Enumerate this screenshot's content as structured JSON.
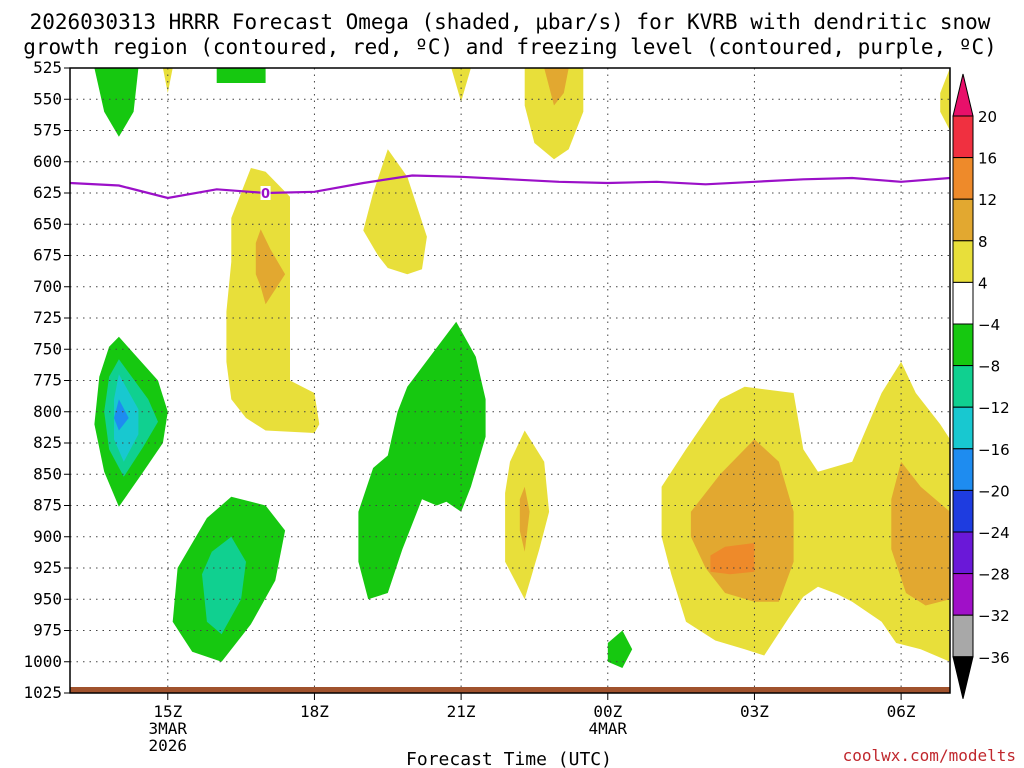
{
  "chart_data": {
    "type": "filled-contour",
    "title_lines": [
      "2026030313 HRRR Forecast Omega (shaded, μbar/s) for KVRB with dendritic snow",
      "growth region (contoured, red, ºC) and freezing level (contoured, purple, ºC)"
    ],
    "xlabel": "Forecast Time (UTC)",
    "credit": "coolwx.com/modelts",
    "x_range_hours": [
      13,
      31
    ],
    "y_range_hpa": [
      525,
      1025
    ],
    "y_ticks": [
      "525",
      "550",
      "575",
      "600",
      "625",
      "650",
      "675",
      "700",
      "725",
      "750",
      "775",
      "800",
      "825",
      "850",
      "875",
      "900",
      "925",
      "950",
      "975",
      "1000",
      "1025"
    ],
    "x_ticks": [
      {
        "hour": 15,
        "lines": [
          "15Z",
          "3MAR",
          "2026"
        ]
      },
      {
        "hour": 18,
        "lines": [
          "18Z"
        ]
      },
      {
        "hour": 21,
        "lines": [
          "21Z"
        ]
      },
      {
        "hour": 24,
        "lines": [
          "00Z",
          "4MAR"
        ]
      },
      {
        "hour": 27,
        "lines": [
          "03Z"
        ]
      },
      {
        "hour": 30,
        "lines": [
          "06Z"
        ]
      }
    ],
    "colorbar": {
      "levels": [
        "20",
        "16",
        "12",
        "8",
        "4",
        "−4",
        "−8",
        "−12",
        "−16",
        "−20",
        "−24",
        "−28",
        "−32",
        "−36"
      ],
      "bins": [
        {
          "range": "16 to 20",
          "color": "#f03040"
        },
        {
          "range": "12 to 16",
          "color": "#ee8a2a"
        },
        {
          "range": "8 to 12",
          "color": "#e2a830"
        },
        {
          "range": "4 to 8",
          "color": "#e8df3a"
        },
        {
          "range": "-4 to 4",
          "color": "#ffffff"
        },
        {
          "range": "-8 to -4",
          "color": "#16c810"
        },
        {
          "range": "-12 to -8",
          "color": "#10d090"
        },
        {
          "range": "-16 to -12",
          "color": "#18c8d0"
        },
        {
          "range": "-20 to -16",
          "color": "#1e8cf0"
        },
        {
          "range": "-24 to -20",
          "color": "#1e3ce0"
        },
        {
          "range": "-28 to -24",
          "color": "#6a18d8"
        },
        {
          "range": "-32 to -28",
          "color": "#a010c8"
        },
        {
          "range": "-36 to -32",
          "color": "#a8a8a8"
        }
      ],
      "top_arrow_color": "#e8106a",
      "bottom_arrow_color": "#000000"
    },
    "freezing_level": {
      "label": "0",
      "color": "#9b10c8",
      "points": [
        [
          13,
          617
        ],
        [
          14,
          619
        ],
        [
          15,
          629
        ],
        [
          16,
          622
        ],
        [
          17,
          625
        ],
        [
          18,
          624
        ],
        [
          19,
          617
        ],
        [
          20,
          611
        ],
        [
          21,
          612
        ],
        [
          22,
          614
        ],
        [
          23,
          616
        ],
        [
          24,
          617
        ],
        [
          25,
          616
        ],
        [
          26,
          618
        ],
        [
          27,
          616
        ],
        [
          28,
          614
        ],
        [
          29,
          613
        ],
        [
          30,
          616
        ],
        [
          31,
          613
        ]
      ]
    },
    "omega_regions": [
      {
        "name": "top-left-descent",
        "level": -4,
        "points": [
          [
            13.5,
            525
          ],
          [
            14.4,
            525
          ],
          [
            14.3,
            560
          ],
          [
            14.0,
            580
          ],
          [
            13.7,
            560
          ]
        ]
      },
      {
        "name": "top-left-descent",
        "level": -4,
        "points": [
          [
            16.0,
            525
          ],
          [
            17.0,
            525
          ],
          [
            17.0,
            537
          ],
          [
            16.0,
            537
          ]
        ]
      },
      {
        "name": "top-left-ascent",
        "level": 4,
        "points": [
          [
            14.9,
            525
          ],
          [
            15.1,
            525
          ],
          [
            15.0,
            545
          ]
        ]
      },
      {
        "name": "top-mid-ascent",
        "level": 4,
        "points": [
          [
            20.8,
            525
          ],
          [
            21.2,
            525
          ],
          [
            21.0,
            552
          ]
        ]
      },
      {
        "name": "top-mid-ascent",
        "level": 4,
        "points": [
          [
            22.3,
            525
          ],
          [
            23.5,
            525
          ],
          [
            23.5,
            560
          ],
          [
            23.2,
            590
          ],
          [
            22.9,
            598
          ],
          [
            22.5,
            585
          ],
          [
            22.3,
            555
          ]
        ]
      },
      {
        "name": "top-mid-ascent",
        "level": 8,
        "points": [
          [
            22.7,
            525
          ],
          [
            23.2,
            525
          ],
          [
            23.1,
            545
          ],
          [
            22.9,
            555
          ],
          [
            22.8,
            540
          ]
        ]
      },
      {
        "name": "top-right-ascent",
        "level": 4,
        "points": [
          [
            30.8,
            545
          ],
          [
            31,
            525
          ],
          [
            31,
            575
          ],
          [
            30.8,
            560
          ]
        ]
      },
      {
        "name": "mid-ascent",
        "level": 4,
        "points": [
          [
            16.3,
            645
          ],
          [
            16.7,
            605
          ],
          [
            17.0,
            608
          ],
          [
            17.5,
            628
          ],
          [
            17.5,
            775
          ],
          [
            18.0,
            785
          ],
          [
            18.1,
            810
          ],
          [
            18.0,
            817
          ],
          [
            17.0,
            815
          ],
          [
            16.6,
            805
          ],
          [
            16.3,
            790
          ],
          [
            16.2,
            760
          ],
          [
            16.2,
            720
          ],
          [
            16.3,
            680
          ]
        ]
      },
      {
        "name": "mid-ascent",
        "level": 8,
        "points": [
          [
            16.8,
            665
          ],
          [
            16.9,
            654
          ],
          [
            17.1,
            670
          ],
          [
            17.4,
            690
          ],
          [
            17.0,
            714
          ],
          [
            16.9,
            700
          ],
          [
            16.8,
            690
          ]
        ]
      },
      {
        "name": "mid-ascent",
        "level": 4,
        "points": [
          [
            19.0,
            655
          ],
          [
            19.2,
            625
          ],
          [
            19.5,
            590
          ],
          [
            19.9,
            612
          ],
          [
            20.3,
            660
          ],
          [
            20.2,
            686
          ],
          [
            19.9,
            690
          ],
          [
            19.5,
            685
          ],
          [
            19.3,
            675
          ]
        ]
      },
      {
        "name": "lower-left-descent",
        "level": -4,
        "points": [
          [
            14.0,
            740
          ],
          [
            14.8,
            775
          ],
          [
            15.0,
            800
          ],
          [
            14.9,
            825
          ],
          [
            14.5,
            848
          ],
          [
            14.0,
            876
          ],
          [
            13.7,
            848
          ],
          [
            13.5,
            810
          ],
          [
            13.6,
            772
          ],
          [
            13.8,
            748
          ]
        ]
      },
      {
        "name": "lower-left-descent",
        "level": -8,
        "points": [
          [
            14.0,
            758
          ],
          [
            14.6,
            790
          ],
          [
            14.8,
            808
          ],
          [
            14.5,
            828
          ],
          [
            14.1,
            852
          ],
          [
            13.8,
            830
          ],
          [
            13.7,
            800
          ],
          [
            13.8,
            772
          ]
        ]
      },
      {
        "name": "lower-left-descent",
        "level": -12,
        "points": [
          [
            14.0,
            770
          ],
          [
            14.4,
            798
          ],
          [
            14.4,
            818
          ],
          [
            14.1,
            840
          ],
          [
            13.9,
            822
          ],
          [
            13.9,
            790
          ]
        ]
      },
      {
        "name": "lower-left-descent",
        "level": -16,
        "points": [
          [
            14.0,
            790
          ],
          [
            14.2,
            805
          ],
          [
            14.0,
            815
          ],
          [
            13.9,
            805
          ]
        ]
      },
      {
        "name": "mid-descent",
        "level": -4,
        "points": [
          [
            19.9,
            780
          ],
          [
            20.9,
            728
          ],
          [
            21.3,
            756
          ],
          [
            21.5,
            790
          ],
          [
            21.5,
            820
          ],
          [
            21.2,
            860
          ],
          [
            21.0,
            880
          ],
          [
            20.7,
            872
          ],
          [
            20.5,
            875
          ],
          [
            20.2,
            870
          ],
          [
            19.8,
            910
          ],
          [
            19.5,
            945
          ],
          [
            19.1,
            950
          ],
          [
            18.9,
            920
          ],
          [
            18.9,
            880
          ],
          [
            19.2,
            845
          ],
          [
            19.5,
            835
          ],
          [
            19.7,
            800
          ]
        ]
      },
      {
        "name": "lower-descent",
        "level": -4,
        "points": [
          [
            15.2,
            925
          ],
          [
            15.8,
            885
          ],
          [
            16.3,
            868
          ],
          [
            17.0,
            875
          ],
          [
            17.4,
            895
          ],
          [
            17.2,
            935
          ],
          [
            16.7,
            970
          ],
          [
            16.1,
            1000
          ],
          [
            15.5,
            992
          ],
          [
            15.1,
            968
          ]
        ]
      },
      {
        "name": "lower-descent",
        "level": -8,
        "points": [
          [
            15.7,
            930
          ],
          [
            15.9,
            912
          ],
          [
            16.3,
            900
          ],
          [
            16.6,
            920
          ],
          [
            16.5,
            950
          ],
          [
            16.1,
            978
          ],
          [
            15.8,
            968
          ]
        ]
      },
      {
        "name": "lower-ascent",
        "level": 4,
        "points": [
          [
            21.9,
            865
          ],
          [
            22.0,
            840
          ],
          [
            22.3,
            815
          ],
          [
            22.7,
            840
          ],
          [
            22.8,
            880
          ],
          [
            22.6,
            910
          ],
          [
            22.3,
            950
          ],
          [
            21.9,
            920
          ]
        ]
      },
      {
        "name": "lower-ascent",
        "level": 8,
        "points": [
          [
            22.2,
            870
          ],
          [
            22.3,
            860
          ],
          [
            22.4,
            880
          ],
          [
            22.3,
            912
          ],
          [
            22.2,
            895
          ]
        ]
      },
      {
        "name": "lower-descent",
        "level": -4,
        "points": [
          [
            24.0,
            985
          ],
          [
            24.3,
            975
          ],
          [
            24.5,
            990
          ],
          [
            24.3,
            1005
          ],
          [
            24.0,
            1000
          ]
        ]
      },
      {
        "name": "lower-right-ascent",
        "level": 4,
        "points": [
          [
            25.1,
            860
          ],
          [
            25.6,
            830
          ],
          [
            26.3,
            790
          ],
          [
            26.8,
            780
          ],
          [
            27.8,
            785
          ],
          [
            28.0,
            830
          ],
          [
            28.3,
            848
          ],
          [
            29.0,
            840
          ],
          [
            29.6,
            785
          ],
          [
            30.0,
            760
          ],
          [
            30.3,
            785
          ],
          [
            30.8,
            810
          ],
          [
            31,
            822
          ],
          [
            31,
            1000
          ],
          [
            30.4,
            990
          ],
          [
            29.9,
            985
          ],
          [
            29.6,
            968
          ],
          [
            29.0,
            952
          ],
          [
            28.7,
            946
          ],
          [
            28.3,
            940
          ],
          [
            28.0,
            948
          ],
          [
            27.7,
            965
          ],
          [
            27.2,
            995
          ],
          [
            26.8,
            990
          ],
          [
            26.2,
            983
          ],
          [
            25.6,
            968
          ],
          [
            25.3,
            930
          ],
          [
            25.1,
            900
          ]
        ]
      },
      {
        "name": "lower-right-ascent",
        "level": 8,
        "points": [
          [
            25.7,
            880
          ],
          [
            26.3,
            850
          ],
          [
            27.0,
            822
          ],
          [
            27.5,
            840
          ],
          [
            27.8,
            880
          ],
          [
            27.8,
            920
          ],
          [
            27.5,
            952
          ],
          [
            27.0,
            952
          ],
          [
            26.4,
            945
          ],
          [
            26.0,
            925
          ],
          [
            25.7,
            900
          ]
        ]
      },
      {
        "name": "lower-right-ascent",
        "level": 12,
        "points": [
          [
            26.1,
            915
          ],
          [
            26.4,
            908
          ],
          [
            27.0,
            905
          ],
          [
            27.0,
            928
          ],
          [
            26.5,
            930
          ],
          [
            26.1,
            928
          ]
        ]
      },
      {
        "name": "lower-right-ascent",
        "level": 8,
        "points": [
          [
            29.8,
            870
          ],
          [
            30.0,
            840
          ],
          [
            30.4,
            860
          ],
          [
            31,
            880
          ],
          [
            31,
            950
          ],
          [
            30.5,
            955
          ],
          [
            30.1,
            945
          ],
          [
            29.8,
            910
          ]
        ]
      }
    ]
  }
}
